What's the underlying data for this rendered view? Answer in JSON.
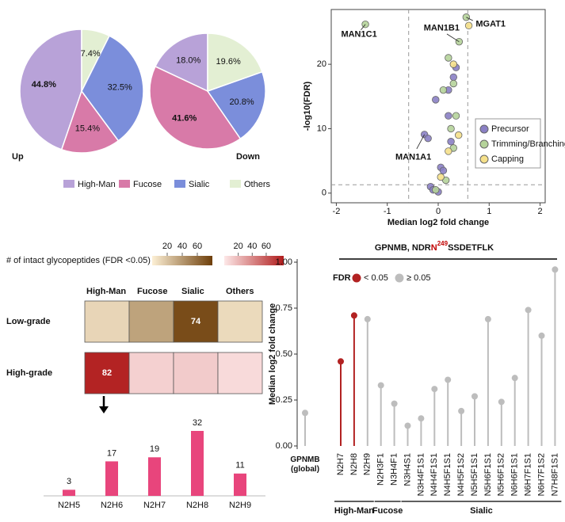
{
  "chart_data": [
    {
      "type": "pie",
      "categories": [
        "High-Man",
        "Fucose",
        "Sialic",
        "Others"
      ],
      "colors": [
        "#b8a2d8",
        "#d87aa8",
        "#7b8edb",
        "#e3efd3"
      ],
      "pies": [
        {
          "label": "Up",
          "values": [
            44.8,
            15.4,
            32.5,
            7.4
          ],
          "value_labels": [
            "44.8%",
            "15.4%",
            "32.5%",
            "7.4%"
          ]
        },
        {
          "label": "Down",
          "values": [
            18.0,
            41.6,
            20.8,
            19.6
          ],
          "value_labels": [
            "18.0%",
            "41.6%",
            "20.8%",
            "19.6%"
          ]
        }
      ]
    },
    {
      "type": "scatter",
      "x_label": "Median log2 fold change",
      "y_label": "-log10(FDR)",
      "xlim": [
        -2.1,
        2.1
      ],
      "ylim": [
        -1.5,
        28.5
      ],
      "xticks": [
        -2,
        -1,
        0,
        1,
        2
      ],
      "yticks": [
        0,
        10,
        20
      ],
      "thresholds": {
        "x": [
          -0.58,
          0.58
        ],
        "y": 1.3
      },
      "series": [
        {
          "name": "Precursor",
          "color": "#8a80c4",
          "x": [
            -0.27,
            -0.2,
            -0.05,
            0.3,
            0.2,
            0.05,
            0.1,
            -0.15,
            -0.1,
            0.0,
            0.2,
            0.35,
            0.25
          ],
          "y": [
            9.1,
            8.5,
            14.5,
            18.0,
            12.0,
            4.0,
            3.5,
            1.0,
            0.5,
            0.2,
            16.0,
            19.5,
            8.0
          ]
        },
        {
          "name": "Trimming/Branching",
          "color": "#b5d39a",
          "x": [
            -1.43,
            0.41,
            0.55,
            0.3,
            0.1,
            0.2,
            0.25,
            0.3,
            0.15,
            -0.05,
            0.35
          ],
          "y": [
            26.2,
            23.5,
            27.3,
            17.0,
            16.0,
            21.0,
            10.0,
            7.0,
            2.0,
            0.5,
            12.0
          ]
        },
        {
          "name": "Capping",
          "color": "#f5e08a",
          "x": [
            0.6,
            0.3,
            0.4,
            0.2,
            0.05
          ],
          "y": [
            26.0,
            20.0,
            9.0,
            6.5,
            2.5
          ]
        }
      ],
      "annotations": [
        {
          "text": "MAN1C1",
          "x": -1.43,
          "y": 26.2
        },
        {
          "text": "MAN1B1",
          "x": 0.41,
          "y": 23.5
        },
        {
          "text": "MGAT1",
          "x": 0.55,
          "y": 27.3
        },
        {
          "text": "MAN1A1",
          "x": -0.27,
          "y": 9.1
        }
      ]
    },
    {
      "type": "heatmap",
      "title": "# of intact glycopeptides (FDR <0.05)",
      "columns": [
        "High-Man",
        "Fucose",
        "Sialic",
        "Others"
      ],
      "rows": [
        {
          "name": "Low-grade",
          "values": [
            12,
            35,
            74,
            10
          ],
          "labeled": [
            false,
            false,
            true,
            false
          ]
        },
        {
          "name": "High-grade",
          "values": [
            82,
            10,
            12,
            6
          ],
          "labeled": [
            true,
            false,
            false,
            false
          ]
        }
      ],
      "scales": [
        {
          "colors": [
            "#fdf0d5",
            "#6e3f0a"
          ],
          "lim": [
            0,
            80
          ],
          "ticks": [
            20,
            40,
            60
          ]
        },
        {
          "colors": [
            "#fde8e8",
            "#b01c1c"
          ],
          "lim": [
            0,
            85
          ],
          "ticks": [
            20,
            40,
            60
          ]
        }
      ]
    },
    {
      "type": "bar",
      "categories": [
        "N2H5",
        "N2H6",
        "N2H7",
        "N2H8",
        "N2H9"
      ],
      "values": [
        3,
        17,
        19,
        32,
        11
      ],
      "color": "#e8457c"
    },
    {
      "type": "lollipop",
      "title_parts": [
        {
          "text": "GPNMB, NDR"
        },
        {
          "text": "N",
          "color": "#c00000"
        },
        {
          "text": "249",
          "color": "#c00000",
          "superscript": true
        },
        {
          "text": "SSDETFLK"
        }
      ],
      "y_label": "Median log2 fold change",
      "categories": [
        "GPNMB (global)",
        "N2H7",
        "N2H8",
        "N2H9",
        "N2H3F1",
        "N3H4F1",
        "N3H4S1",
        "N3H4F1S1",
        "N4H4F1S1",
        "N4H5F1S1",
        "N4H5F1S2",
        "N5H5F1S1",
        "N5H6F1S1",
        "N5H6F1S2",
        "N6H6F1S1",
        "N6H7F1S1",
        "N6H7F1S2",
        "N7H8F1S1"
      ],
      "values": [
        0.18,
        0.46,
        0.71,
        0.69,
        0.33,
        0.23,
        0.11,
        0.15,
        0.31,
        0.36,
        0.19,
        0.27,
        0.69,
        0.24,
        0.37,
        0.74,
        0.6,
        0.96
      ],
      "significant": [
        false,
        true,
        true,
        false,
        false,
        false,
        false,
        false,
        false,
        false,
        false,
        false,
        false,
        false,
        false,
        false,
        false,
        false
      ],
      "legend": {
        "title": "FDR",
        "items": [
          {
            "label": "< 0.05",
            "color": "#b22222"
          },
          {
            "label": "≥ 0.05",
            "color": "#bdbdbd"
          }
        ]
      },
      "groups": [
        {
          "label": "High-Man",
          "categories": [
            "N2H7",
            "N2H8",
            "N2H9"
          ]
        },
        {
          "label": "Fucose",
          "categories": [
            "N2H3F1",
            "N3H4F1"
          ]
        },
        {
          "label": "Sialic",
          "categories": [
            "N3H4S1",
            "N3H4F1S1",
            "N4H4F1S1",
            "N4H5F1S1",
            "N4H5F1S2",
            "N5H5F1S1",
            "N5H6F1S1",
            "N5H6F1S2",
            "N6H6F1S1",
            "N6H7F1S1",
            "N6H7F1S2",
            "N7H8F1S1"
          ]
        }
      ],
      "ylim": [
        0,
        1
      ],
      "yticks": [
        {
          "value": 0,
          "label": "0.00"
        },
        {
          "value": 0.25,
          "label": "0.25"
        },
        {
          "value": 0.5,
          "label": "0.50"
        },
        {
          "value": 0.75,
          "label": "0.75"
        },
        {
          "value": 1,
          "label": "1.00"
        }
      ]
    }
  ]
}
